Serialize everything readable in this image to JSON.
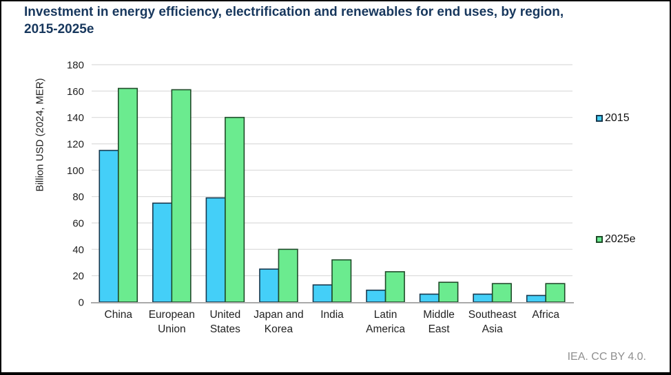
{
  "header": {
    "title_line1": "Investment in energy efficiency, electrification and renewables for end uses, by region,",
    "title_line2": "2015-2025e"
  },
  "chart_data": {
    "type": "bar",
    "title": "Investment in energy efficiency, electrification and renewables for end uses, by region, 2015-2025e",
    "xlabel": "",
    "ylabel": "Billion USD (2024, MER)",
    "ylim": [
      0,
      180
    ],
    "ytick_step": 20,
    "grid": true,
    "legend_position": "right",
    "categories": [
      "China",
      "European Union",
      "United States",
      "Japan and Korea",
      "India",
      "Latin America",
      "Middle East",
      "Southeast Asia",
      "Africa"
    ],
    "category_label_lines": [
      [
        "China"
      ],
      [
        "European",
        "Union"
      ],
      [
        "United",
        "States"
      ],
      [
        "Japan and",
        "Korea"
      ],
      [
        "India"
      ],
      [
        "Latin",
        "America"
      ],
      [
        "Middle",
        "East"
      ],
      [
        "Southeast",
        "Asia"
      ],
      [
        "Africa"
      ]
    ],
    "series": [
      {
        "name": "2015",
        "color": "#44CFF8",
        "border_color": "#17384E",
        "values": [
          115,
          75,
          79,
          25,
          13,
          9,
          6,
          6,
          5
        ]
      },
      {
        "name": "2025e",
        "color": "#6BEB8F",
        "border_color": "#1E4A28",
        "values": [
          162,
          161,
          140,
          40,
          32,
          23,
          15,
          14,
          14
        ]
      }
    ]
  },
  "footer": {
    "credit": "IEA. CC BY 4.0."
  }
}
